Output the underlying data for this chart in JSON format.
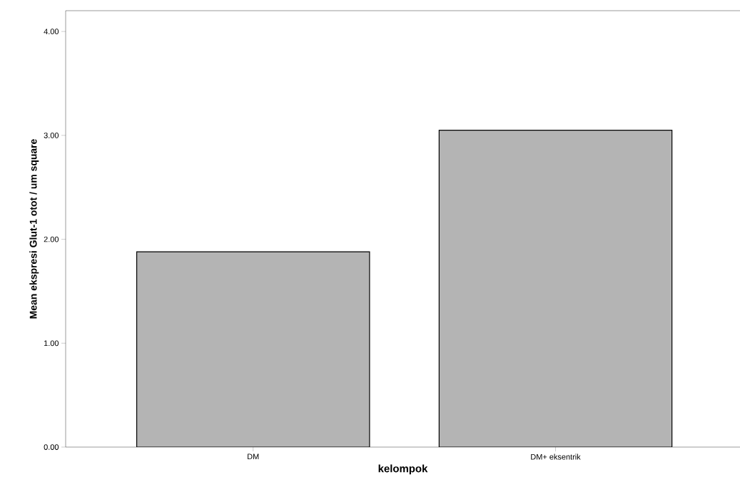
{
  "chart_data": {
    "type": "bar",
    "xlabel": "kelompok",
    "ylabel": "Mean ekspresi Glut-1 otot / um square",
    "categories": [
      "DM",
      "DM+ eksentrik"
    ],
    "values": [
      1.88,
      3.05
    ],
    "color": "#b4b4b4",
    "ylim": [
      0,
      4.2
    ],
    "yticks": [
      {
        "value": 0,
        "label": "0.00"
      },
      {
        "value": 1,
        "label": "1.00"
      },
      {
        "value": 2,
        "label": "2.00"
      },
      {
        "value": 3,
        "label": "3.00"
      },
      {
        "value": 4,
        "label": "4.00"
      }
    ],
    "grid": false
  }
}
